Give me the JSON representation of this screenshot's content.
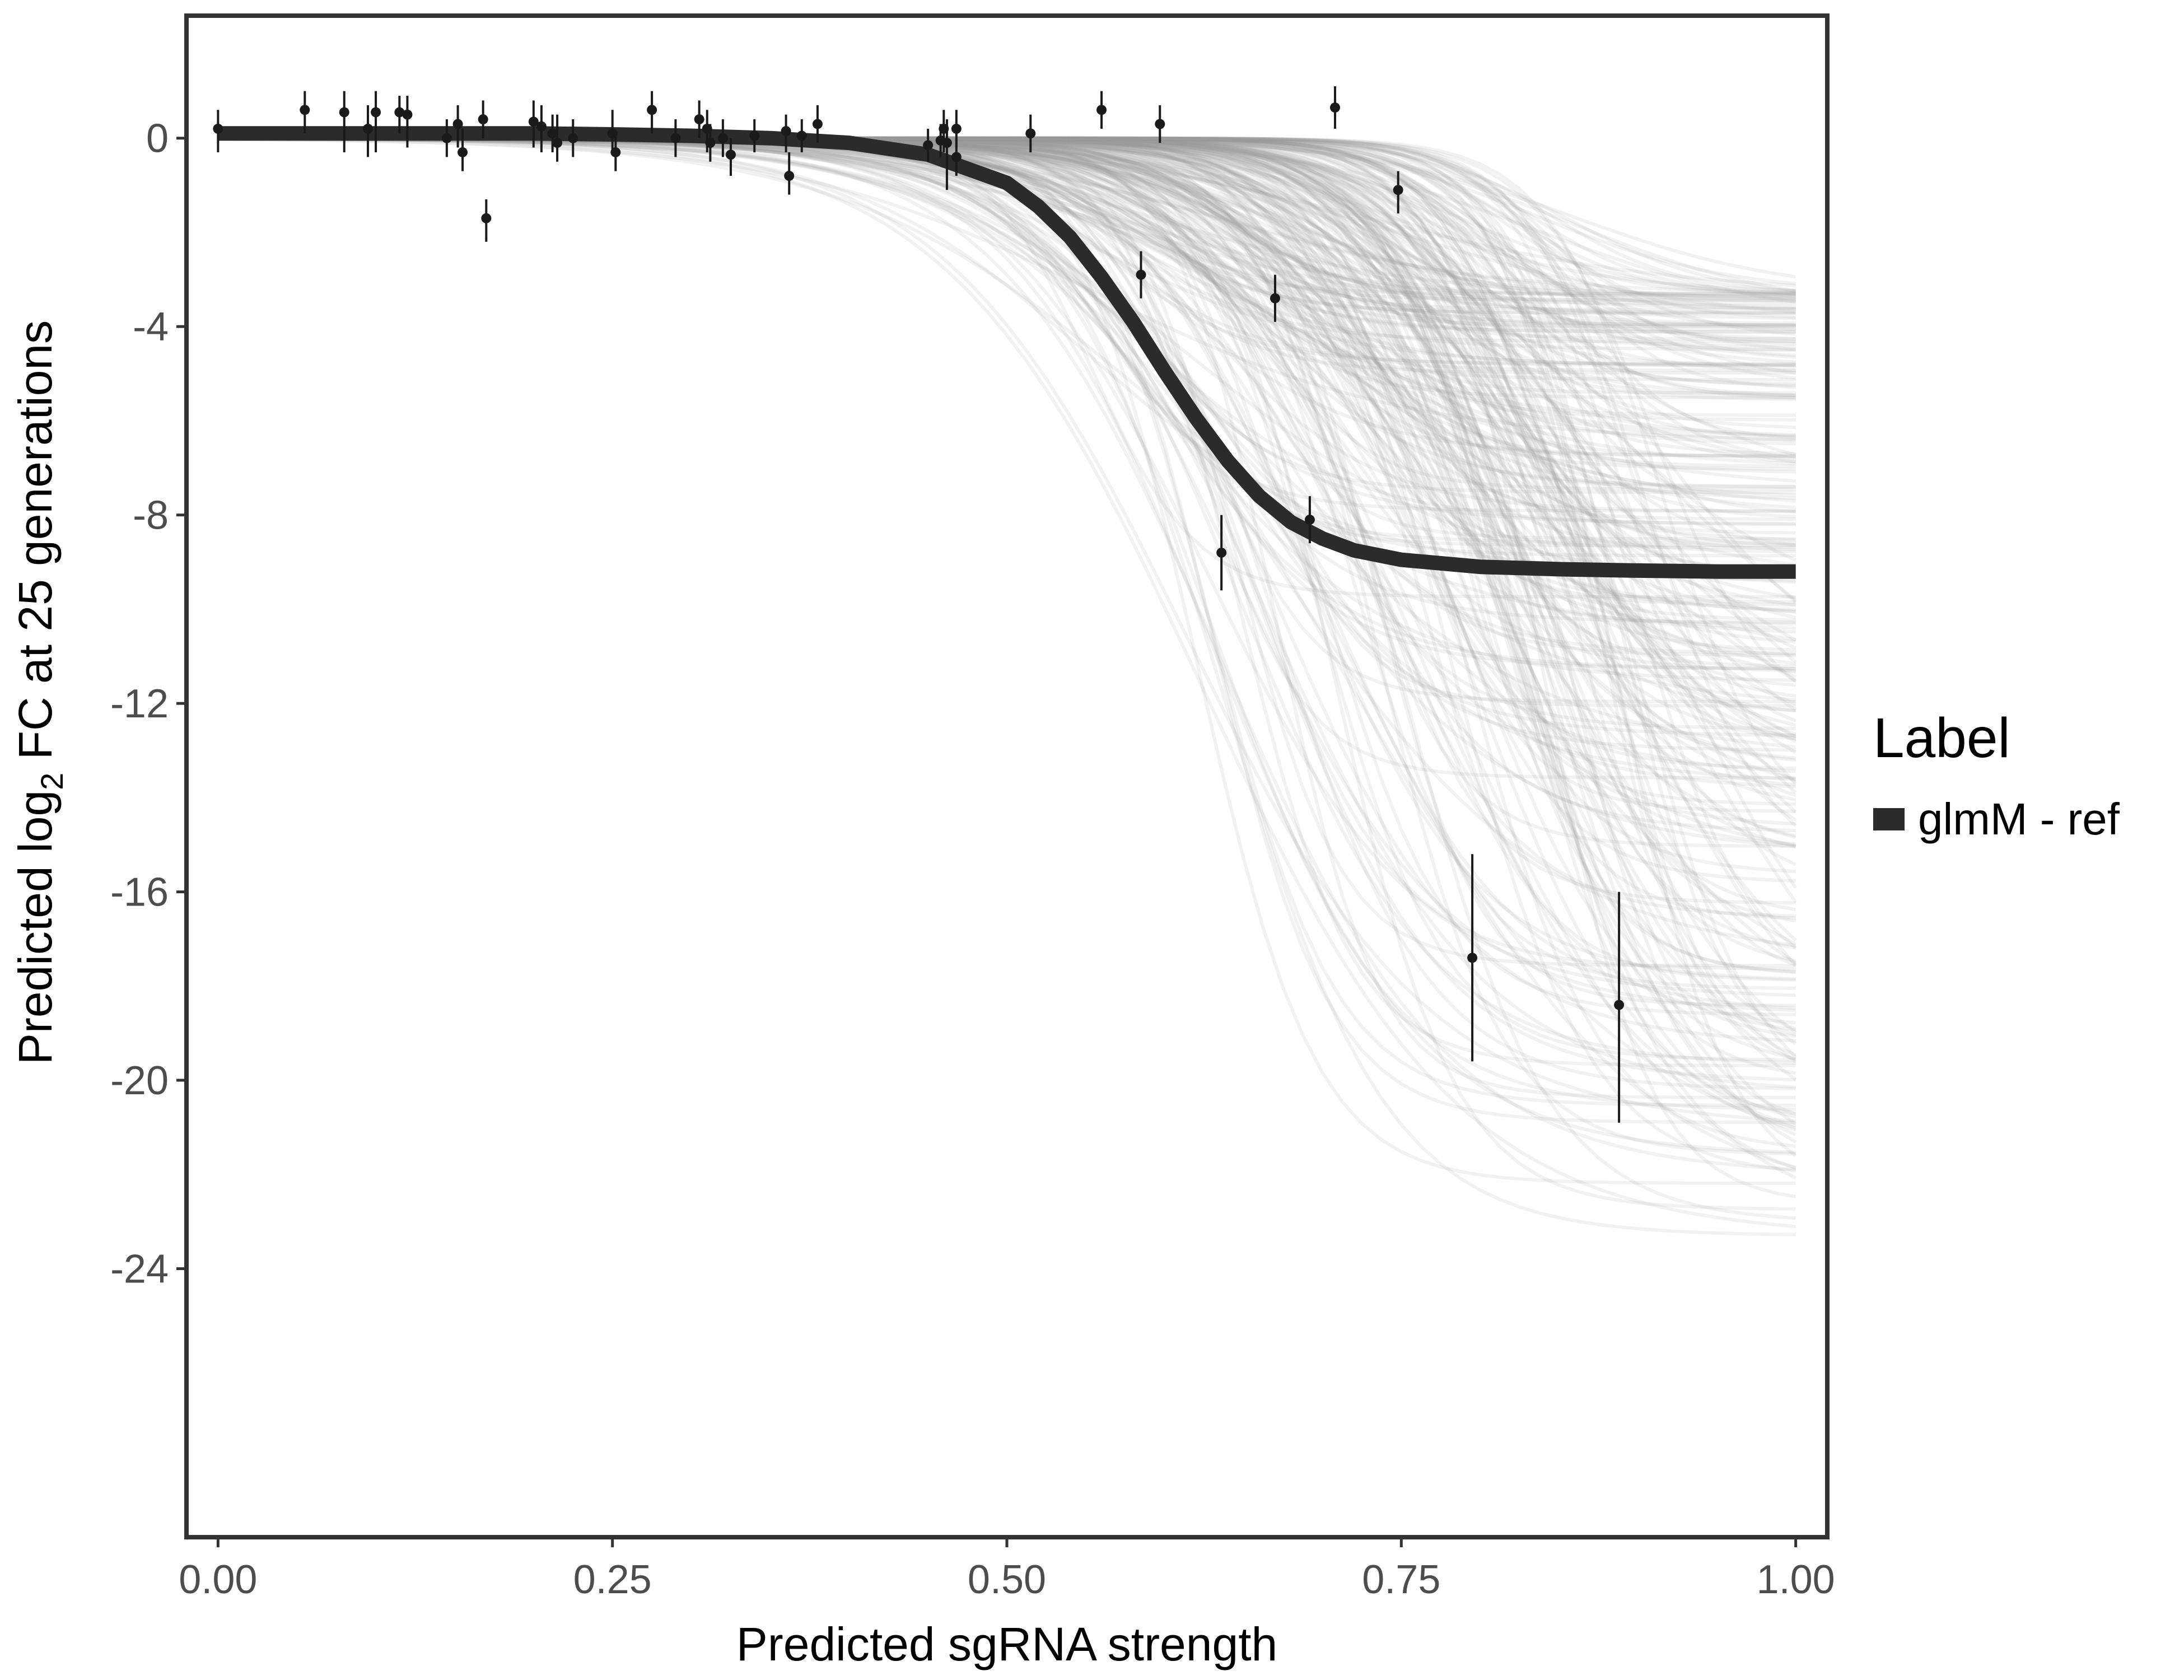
{
  "chart_data": {
    "type": "line",
    "xlabel": "Predicted sgRNA strength",
    "ylabel_prefix": "Predicted  log",
    "ylabel_sub": "2",
    "ylabel_suffix": " FC at 25 generations",
    "xlim": [
      -0.02,
      1.02
    ],
    "ylim": [
      -29.7,
      2.6
    ],
    "x_ticks": [
      0,
      0.25,
      0.5,
      0.75,
      1
    ],
    "x_tick_labels": [
      "0.00",
      "0.25",
      "0.50",
      "0.75",
      "1.00"
    ],
    "y_ticks": [
      0,
      -4,
      -8,
      -12,
      -16,
      -20,
      -24
    ],
    "y_tick_labels": [
      "0",
      "-4",
      "-8",
      "-12",
      "-16",
      "-20",
      "-24"
    ],
    "grid": false,
    "legend": {
      "title": "Label",
      "placement": "right",
      "entries": [
        {
          "name": "glmM - ref",
          "color": "#2b2b2b"
        }
      ]
    },
    "fit_curve": {
      "name": "glmM - ref",
      "color": "#2b2b2b",
      "x": [
        0,
        0.05,
        0.1,
        0.15,
        0.2,
        0.25,
        0.3,
        0.35,
        0.4,
        0.45,
        0.5,
        0.52,
        0.54,
        0.56,
        0.58,
        0.6,
        0.62,
        0.64,
        0.66,
        0.68,
        0.7,
        0.72,
        0.75,
        0.8,
        0.85,
        0.9,
        0.95,
        1.0
      ],
      "y": [
        0.1,
        0.1,
        0.1,
        0.1,
        0.1,
        0.08,
        0.05,
        0.0,
        -0.1,
        -0.35,
        -0.95,
        -1.45,
        -2.1,
        -2.95,
        -3.9,
        -4.95,
        -5.95,
        -6.85,
        -7.6,
        -8.15,
        -8.5,
        -8.75,
        -8.95,
        -9.1,
        -9.15,
        -9.18,
        -9.2,
        -9.2
      ]
    },
    "posterior_draws": {
      "color": "#9e9e9e",
      "count": 300,
      "note_midpoint_range": [
        0.45,
        0.86
      ],
      "asymptote_range": [
        -23.5,
        -3.3
      ]
    },
    "points": [
      {
        "x": 0.0,
        "y": 0.2,
        "lo": -0.3,
        "hi": 0.6
      },
      {
        "x": 0.055,
        "y": 0.6,
        "lo": 0.1,
        "hi": 1.0
      },
      {
        "x": 0.08,
        "y": 0.55,
        "lo": -0.3,
        "hi": 1.0
      },
      {
        "x": 0.095,
        "y": 0.2,
        "lo": -0.4,
        "hi": 0.7
      },
      {
        "x": 0.1,
        "y": 0.55,
        "lo": -0.3,
        "hi": 1.0
      },
      {
        "x": 0.115,
        "y": 0.55,
        "lo": 0.1,
        "hi": 0.9
      },
      {
        "x": 0.12,
        "y": 0.5,
        "lo": -0.2,
        "hi": 0.9
      },
      {
        "x": 0.145,
        "y": 0.0,
        "lo": -0.4,
        "hi": 0.4
      },
      {
        "x": 0.152,
        "y": 0.3,
        "lo": -0.2,
        "hi": 0.7
      },
      {
        "x": 0.155,
        "y": -0.3,
        "lo": -0.7,
        "hi": 0.2
      },
      {
        "x": 0.168,
        "y": 0.4,
        "lo": 0.0,
        "hi": 0.8
      },
      {
        "x": 0.17,
        "y": -1.7,
        "lo": -2.2,
        "hi": -1.3
      },
      {
        "x": 0.2,
        "y": 0.35,
        "lo": -0.2,
        "hi": 0.8
      },
      {
        "x": 0.205,
        "y": 0.25,
        "lo": -0.3,
        "hi": 0.7
      },
      {
        "x": 0.212,
        "y": 0.1,
        "lo": -0.3,
        "hi": 0.5
      },
      {
        "x": 0.215,
        "y": -0.1,
        "lo": -0.5,
        "hi": 0.5
      },
      {
        "x": 0.225,
        "y": 0.0,
        "lo": -0.4,
        "hi": 0.4
      },
      {
        "x": 0.25,
        "y": 0.1,
        "lo": -0.3,
        "hi": 0.6
      },
      {
        "x": 0.252,
        "y": -0.3,
        "lo": -0.7,
        "hi": 0.1
      },
      {
        "x": 0.275,
        "y": 0.6,
        "lo": 0.1,
        "hi": 1.0
      },
      {
        "x": 0.29,
        "y": 0.0,
        "lo": -0.4,
        "hi": 0.4
      },
      {
        "x": 0.305,
        "y": 0.4,
        "lo": 0.0,
        "hi": 0.8
      },
      {
        "x": 0.31,
        "y": 0.2,
        "lo": -0.3,
        "hi": 0.6
      },
      {
        "x": 0.312,
        "y": -0.1,
        "lo": -0.5,
        "hi": 0.3
      },
      {
        "x": 0.32,
        "y": 0.0,
        "lo": -0.4,
        "hi": 0.4
      },
      {
        "x": 0.325,
        "y": -0.35,
        "lo": -0.8,
        "hi": 0.0
      },
      {
        "x": 0.34,
        "y": 0.05,
        "lo": -0.3,
        "hi": 0.4
      },
      {
        "x": 0.36,
        "y": 0.15,
        "lo": -0.3,
        "hi": 0.5
      },
      {
        "x": 0.362,
        "y": -0.8,
        "lo": -1.2,
        "hi": -0.3
      },
      {
        "x": 0.37,
        "y": 0.05,
        "lo": -0.3,
        "hi": 0.4
      },
      {
        "x": 0.38,
        "y": 0.3,
        "lo": -0.1,
        "hi": 0.7
      },
      {
        "x": 0.45,
        "y": -0.15,
        "lo": -0.5,
        "hi": 0.2
      },
      {
        "x": 0.458,
        "y": -0.05,
        "lo": -0.4,
        "hi": 0.3
      },
      {
        "x": 0.46,
        "y": 0.2,
        "lo": -0.3,
        "hi": 0.6
      },
      {
        "x": 0.462,
        "y": -0.1,
        "lo": -1.1,
        "hi": 0.4
      },
      {
        "x": 0.468,
        "y": 0.2,
        "lo": -0.2,
        "hi": 0.6
      },
      {
        "x": 0.468,
        "y": -0.4,
        "lo": -0.8,
        "hi": 0.0
      },
      {
        "x": 0.515,
        "y": 0.1,
        "lo": -0.3,
        "hi": 0.5
      },
      {
        "x": 0.56,
        "y": 0.6,
        "lo": 0.2,
        "hi": 1.0
      },
      {
        "x": 0.585,
        "y": -2.9,
        "lo": -3.4,
        "hi": -2.4
      },
      {
        "x": 0.597,
        "y": 0.3,
        "lo": -0.1,
        "hi": 0.7
      },
      {
        "x": 0.636,
        "y": -8.8,
        "lo": -9.6,
        "hi": -8.0
      },
      {
        "x": 0.67,
        "y": -3.4,
        "lo": -3.9,
        "hi": -2.9
      },
      {
        "x": 0.692,
        "y": -8.1,
        "lo": -8.6,
        "hi": -7.6
      },
      {
        "x": 0.708,
        "y": 0.65,
        "lo": 0.2,
        "hi": 1.1
      },
      {
        "x": 0.748,
        "y": -1.1,
        "lo": -1.6,
        "hi": -0.7
      },
      {
        "x": 0.795,
        "y": -17.4,
        "lo": -19.6,
        "hi": -15.2
      },
      {
        "x": 0.888,
        "y": -18.4,
        "lo": -20.9,
        "hi": -16.0
      }
    ]
  }
}
